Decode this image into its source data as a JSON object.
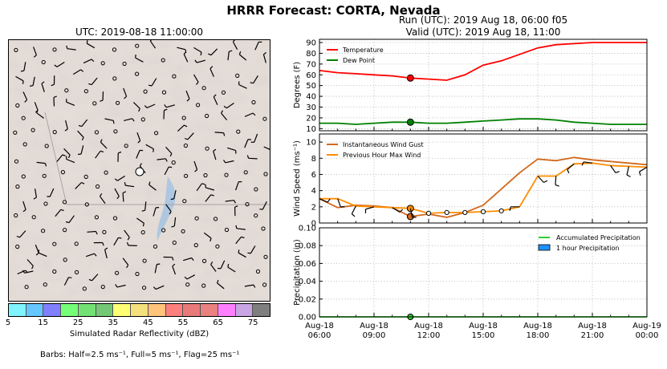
{
  "title": "HRRR Forecast: CORTA, Nevada",
  "map": {
    "title": "UTC: 2019-08-18 11:00:00",
    "colorbar": {
      "label": "Simulated Radar Reflectivity (dBZ)",
      "ticks": [
        "5",
        "15",
        "25",
        "35",
        "45",
        "55",
        "65",
        "75"
      ],
      "colors": [
        "#7ff4ff",
        "#66c6ff",
        "#8080ff",
        "#76ff76",
        "#74e174",
        "#74c774",
        "#ffff76",
        "#f4e07c",
        "#ffc47a",
        "#ff7f7f",
        "#e97a7a",
        "#e88180",
        "#ff80ff",
        "#c9a6e3",
        "#7f7f7f"
      ]
    },
    "barb_note": "Barbs: Half=2.5 ms⁻¹, Full=5 ms⁻¹, Flag=25 ms⁻¹"
  },
  "run_title": {
    "line1": "Run (UTC): 2019 Aug 18, 06:00 f05",
    "line2": "Valid (UTC): 2019 Aug 18, 11:00"
  },
  "chart_data": [
    {
      "type": "line",
      "ylabel": "Degrees (F)",
      "ylim": [
        8,
        93
      ],
      "yticks": [
        10,
        20,
        30,
        40,
        50,
        60,
        70,
        80,
        90
      ],
      "grid": true,
      "legend": "top-left",
      "highlight_x": 11,
      "x": [
        6,
        7,
        8,
        9,
        10,
        11,
        12,
        13,
        14,
        15,
        16,
        17,
        18,
        19,
        20,
        21,
        22,
        23,
        24
      ],
      "series": [
        {
          "name": "Temperature",
          "color": "#ff0000",
          "values": [
            64,
            62,
            61,
            60,
            59,
            57,
            56,
            55,
            60,
            69,
            73,
            79,
            85,
            88,
            89,
            90,
            90,
            90,
            90
          ]
        },
        {
          "name": "Dew Point",
          "color": "#008000",
          "values": [
            15,
            15,
            14,
            15,
            16,
            16,
            15,
            15,
            16,
            17,
            18,
            19,
            19,
            18,
            16,
            15,
            14,
            14,
            14
          ]
        }
      ]
    },
    {
      "type": "line",
      "ylabel": "Wind Speed (ms⁻¹)",
      "ylim": [
        0,
        11
      ],
      "yticks": [
        0,
        2,
        4,
        6,
        8,
        10
      ],
      "grid": true,
      "legend": "top-left",
      "highlight_x": 11,
      "x": [
        6,
        7,
        8,
        9,
        10,
        11,
        12,
        13,
        14,
        15,
        16,
        17,
        18,
        19,
        20,
        21,
        22,
        23,
        24
      ],
      "series": [
        {
          "name": "Instantaneous Wind Gust",
          "color": "#d2691e",
          "values": [
            3.0,
            1.9,
            2.2,
            2.1,
            1.9,
            0.8,
            1.1,
            0.7,
            1.3,
            2.2,
            4.2,
            6.2,
            7.9,
            7.7,
            8.1,
            7.8,
            7.6,
            7.4,
            7.2
          ]
        },
        {
          "name": "Previous Hour Max Wind",
          "color": "#ff8c00",
          "values": [
            3.0,
            3.0,
            2.1,
            2.0,
            1.9,
            1.8,
            1.2,
            1.3,
            1.3,
            1.4,
            1.5,
            2.0,
            5.8,
            5.8,
            7.3,
            7.4,
            7.1,
            7.0,
            6.9
          ]
        }
      ]
    },
    {
      "type": "bar",
      "ylabel": "Precipitation (in)",
      "ylim": [
        0,
        0.1
      ],
      "yticks": [
        "0.00",
        "0.02",
        "0.04",
        "0.06",
        "0.08",
        "0.10"
      ],
      "grid": true,
      "legend": "top-right",
      "highlight_x": 11,
      "x": [
        6,
        7,
        8,
        9,
        10,
        11,
        12,
        13,
        14,
        15,
        16,
        17,
        18,
        19,
        20,
        21,
        22,
        23,
        24
      ],
      "xticklabels": [
        {
          "x": 6,
          "line1": "Aug-18",
          "line2": "06:00"
        },
        {
          "x": 9,
          "line1": "Aug-18",
          "line2": "09:00"
        },
        {
          "x": 12,
          "line1": "Aug-18",
          "line2": "12:00"
        },
        {
          "x": 15,
          "line1": "Aug-18",
          "line2": "15:00"
        },
        {
          "x": 18,
          "line1": "Aug-18",
          "line2": "18:00"
        },
        {
          "x": 21,
          "line1": "Aug-18",
          "line2": "21:00"
        },
        {
          "x": 24,
          "line1": "Aug-19",
          "line2": "00:00"
        }
      ],
      "series": [
        {
          "name": "Accumulated Precipitation",
          "color": "#32cd32",
          "values": [
            0,
            0,
            0,
            0,
            0,
            0,
            0,
            0,
            0,
            0,
            0,
            0,
            0,
            0,
            0,
            0,
            0,
            0,
            0
          ]
        },
        {
          "name": "1 hour Precipitation",
          "color": "#1e90ff",
          "values": [
            0,
            0,
            0,
            0,
            0,
            0,
            0,
            0,
            0,
            0,
            0,
            0,
            0,
            0,
            0,
            0,
            0,
            0,
            0
          ]
        }
      ]
    }
  ]
}
